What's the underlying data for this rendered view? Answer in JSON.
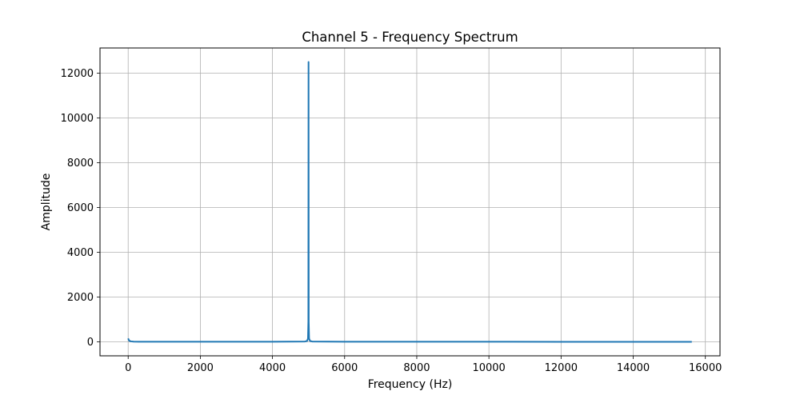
{
  "chart_data": {
    "type": "line",
    "title": "Channel 5 - Frequency Spectrum",
    "xlabel": "Frequency (Hz)",
    "ylabel": "Amplitude",
    "xlim": [
      -781,
      16406
    ],
    "ylim": [
      -625,
      13125
    ],
    "xticks": [
      0,
      2000,
      4000,
      6000,
      8000,
      10000,
      12000,
      14000,
      16000
    ],
    "yticks": [
      0,
      2000,
      4000,
      6000,
      8000,
      10000,
      12000
    ],
    "grid": true,
    "line_color": "#1f77b4",
    "series": [
      {
        "name": "",
        "x": [
          0,
          20,
          40,
          80,
          150,
          300,
          1000,
          2000,
          3000,
          4000,
          4900,
          4960,
          4985,
          4995,
          5000,
          5005,
          5015,
          5040,
          5100,
          6000,
          8000,
          10000,
          12000,
          14000,
          15625
        ],
        "y": [
          150,
          70,
          40,
          20,
          10,
          5,
          3,
          3,
          4,
          5,
          15,
          40,
          150,
          900,
          12500,
          900,
          150,
          40,
          15,
          5,
          3,
          3,
          2,
          2,
          2
        ]
      }
    ]
  }
}
